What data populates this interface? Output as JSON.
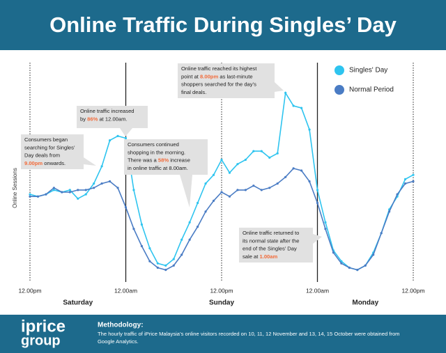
{
  "chart_data": {
    "type": "line",
    "title": "Online Traffic During Singles’ Day",
    "y_label": "Online Sessions",
    "x": [
      0,
      1,
      2,
      3,
      4,
      5,
      6,
      7,
      8,
      9,
      10,
      11,
      12,
      13,
      14,
      15,
      16,
      17,
      18,
      19,
      20,
      21,
      22,
      23,
      24,
      25,
      26,
      27,
      28,
      29,
      30,
      31,
      32,
      33,
      34,
      35,
      36,
      37,
      38,
      39,
      40,
      41,
      42,
      43,
      44,
      45,
      46,
      47,
      48
    ],
    "xlim": [
      0,
      48
    ],
    "xticks": [
      {
        "value": 0,
        "label": "12.00pm"
      },
      {
        "value": 12,
        "label": "12.00am"
      },
      {
        "value": 24,
        "label": "12.00pm"
      },
      {
        "value": 36,
        "label": "12.00am"
      },
      {
        "value": 48,
        "label": "12.00pm"
      }
    ],
    "ylim": [
      0,
      100
    ],
    "day_labels": [
      {
        "value": 6,
        "label": "Saturday"
      },
      {
        "value": 24,
        "label": "Sunday"
      },
      {
        "value": 42,
        "label": "Monday"
      }
    ],
    "legend": "top-right",
    "series": [
      {
        "name": "Singles' Day",
        "color": "#2ec4ef",
        "values": [
          39,
          38,
          39,
          41,
          40,
          41,
          37,
          39,
          44,
          52,
          64,
          66,
          65,
          41,
          25,
          14,
          7,
          6,
          9,
          18,
          26,
          35,
          44,
          48,
          55,
          49,
          53,
          55,
          59,
          59,
          56,
          58,
          86,
          80,
          79,
          69,
          41,
          26,
          13,
          8,
          5,
          4,
          6,
          12,
          21,
          32,
          38,
          46,
          48
        ]
      },
      {
        "name": "Normal Period",
        "color": "#4a7cc4",
        "values": [
          38,
          38,
          39,
          42,
          40,
          40,
          41,
          41,
          42,
          44,
          45,
          42,
          33,
          23,
          15,
          8,
          5,
          4,
          6,
          11,
          18,
          24,
          31,
          36,
          40,
          38,
          41,
          41,
          43,
          41,
          42,
          44,
          47,
          51,
          50,
          45,
          35,
          23,
          12,
          7,
          5,
          4,
          6,
          11,
          21,
          31,
          39,
          44,
          45
        ]
      }
    ],
    "annotations": [
      {
        "lines": [
          [
            "Consumers began"
          ],
          [
            "searching for Singles’"
          ],
          [
            "Day deals from"
          ],
          [
            {
              "text": "9.00pm",
              "highlight": true
            },
            " onwards."
          ]
        ]
      },
      {
        "lines": [
          [
            "Online traffic increased"
          ],
          [
            "by ",
            {
              "text": "86%",
              "highlight": true
            },
            " at 12.00am."
          ]
        ]
      },
      {
        "lines": [
          [
            "Consumers continued"
          ],
          [
            "shopping in the morning."
          ],
          [
            "There was a ",
            {
              "text": "58%",
              "highlight": true
            },
            " increase"
          ],
          [
            "in online traffic at 8.00am."
          ]
        ]
      },
      {
        "lines": [
          [
            "Online traffic reached its highest"
          ],
          [
            "point at ",
            {
              "text": "8.00pm",
              "highlight": true
            },
            " as last-minute"
          ],
          [
            "shoppers searched for the day’s"
          ],
          [
            "final deals."
          ]
        ]
      },
      {
        "lines": [
          [
            "Online traffic returned to"
          ],
          [
            "its normal state after the"
          ],
          [
            "end of the Singles’ Day"
          ],
          [
            "sale at ",
            {
              "text": "1.00am",
              "highlight": true
            }
          ]
        ]
      }
    ]
  },
  "footer": {
    "logo_top": "iprice",
    "logo_bottom": "group",
    "methodology_title": "Methodology:",
    "methodology_lines": [
      "The hourly traffic of iPrice Malaysia’s online visitors recorded on 10, 11, 12 November and 13, 14, 15 October were obtained from",
      "Google Analytics."
    ]
  }
}
